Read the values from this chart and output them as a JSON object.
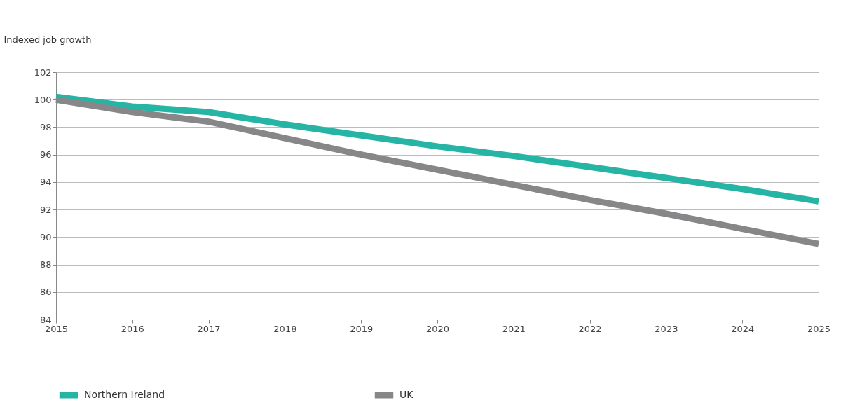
{
  "chart_data": {
    "type": "line",
    "ylabel": "Indexed job growth",
    "x": [
      2015,
      2016,
      2017,
      2018,
      2019,
      2020,
      2021,
      2022,
      2023,
      2024,
      2025
    ],
    "xlim": [
      2015,
      2025
    ],
    "xticks": [
      2015,
      2016,
      2017,
      2018,
      2019,
      2020,
      2021,
      2022,
      2023,
      2024,
      2025
    ],
    "ylim": [
      84,
      102
    ],
    "yticks": [
      84,
      86,
      88,
      90,
      92,
      94,
      96,
      98,
      100,
      102
    ],
    "grid": "y",
    "legend": "bottom",
    "marker": "none",
    "line_style": "solid",
    "series": [
      {
        "name": "Northern Ireland",
        "color": "#26b5a5",
        "values": [
          100.2,
          99.5,
          99.1,
          98.2,
          97.4,
          96.6,
          95.9,
          95.1,
          94.3,
          93.5,
          92.6
        ]
      },
      {
        "name": "UK",
        "color": "#87878a",
        "values": [
          100.0,
          99.1,
          98.4,
          97.2,
          96.0,
          94.9,
          93.8,
          92.7,
          91.7,
          90.6,
          89.5
        ]
      }
    ]
  }
}
